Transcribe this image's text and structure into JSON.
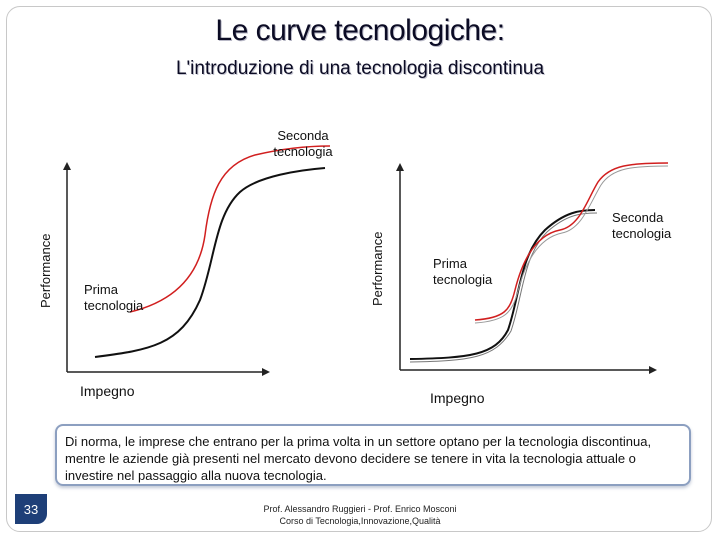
{
  "slide": {
    "title": "Le curve tecnologiche:",
    "subtitle": "L'introduzione di una tecnologia discontinua",
    "note": "Di norma, le imprese che entrano per la prima volta in un settore optano per la tecnologia discontinua, mentre le aziende già presenti nel mercato devono decidere se tenere in vita la tecnologia attuale o investire nel passaggio alla nuova tecnologia.",
    "page_number": "33",
    "footer_line1": "Prof. Alessandro Ruggieri - Prof. Enrico Mosconi",
    "footer_line2": "Corso di Tecnologia,Innovazione,Qualità"
  },
  "diagrams": [
    {
      "y_axis_label": "Performance",
      "x_axis_label": "Impegno",
      "first_curve_label": "Prima tecnologia",
      "second_curve_label": "Seconda tecnologia"
    },
    {
      "y_axis_label": "Performance",
      "x_axis_label": "Impegno",
      "first_curve_label": "Prima tecnologia",
      "second_curve_label": "Seconda tecnologia"
    }
  ],
  "colors": {
    "first_curve": "#000000",
    "second_curve": "#d11f1f",
    "page_badge": "#1e3f78",
    "note_border": "#8c9fc0"
  }
}
